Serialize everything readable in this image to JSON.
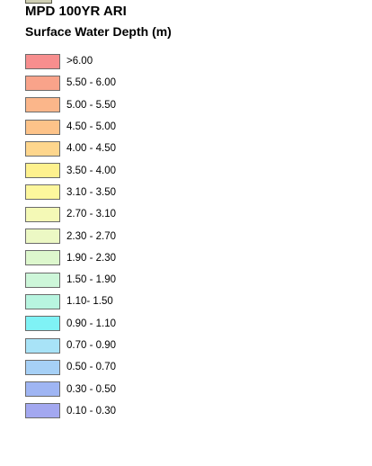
{
  "legend": {
    "title": "MPD 100YR ARI",
    "subtitle": "Surface Water Depth (m)",
    "previous_swatch_color": "#cfcfb4",
    "items": [
      {
        "label": ">6.00",
        "color": "#f78e8e"
      },
      {
        "label": "5.50 - 6.00",
        "color": "#f9a38a"
      },
      {
        "label": "5.00 - 5.50",
        "color": "#fbb68a"
      },
      {
        "label": "4.50 - 5.00",
        "color": "#fdc389"
      },
      {
        "label": "4.00 - 4.50",
        "color": "#fed68d"
      },
      {
        "label": "3.50 - 4.00",
        "color": "#fef18e"
      },
      {
        "label": "3.10 - 3.50",
        "color": "#fdf79d"
      },
      {
        "label": "2.70 - 3.10",
        "color": "#f4f9b6"
      },
      {
        "label": "2.30 - 2.70",
        "color": "#ecf8c4"
      },
      {
        "label": "1.90 - 2.30",
        "color": "#ddf7cd"
      },
      {
        "label": "1.50 - 1.90",
        "color": "#cdf6d9"
      },
      {
        "label": "1.10- 1.50",
        "color": "#b8f5e0"
      },
      {
        "label": "0.90 - 1.10",
        "color": "#7ff2f5"
      },
      {
        "label": "0.70 - 0.90",
        "color": "#a8e3f7"
      },
      {
        "label": "0.50 - 0.70",
        "color": "#a6d0f6"
      },
      {
        "label": "0.30 - 0.50",
        "color": "#9fb5f3"
      },
      {
        "label": "0.10 - 0.30",
        "color": "#a3a8f0"
      }
    ]
  }
}
